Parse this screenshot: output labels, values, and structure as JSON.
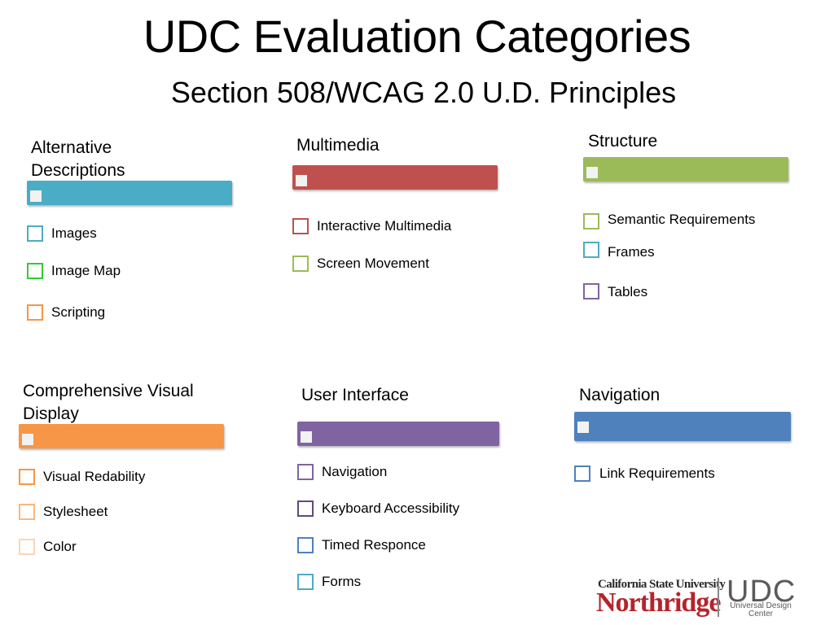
{
  "title": "UDC Evaluation Categories",
  "subtitle": "Section 508/WCAG 2.0 U.D. Principles",
  "groups": [
    {
      "label": "Alternative Descriptions",
      "bar_color": "#4bacc6",
      "items": [
        {
          "label": "Images",
          "color": "#4bacc6"
        },
        {
          "label": "Image Map",
          "color": "#33cc33"
        },
        {
          "label": "Scripting",
          "color": "#f79646"
        }
      ]
    },
    {
      "label": "Multimedia",
      "bar_color": "#c0504d",
      "items": [
        {
          "label": "Interactive Multimedia",
          "color": "#c0504d"
        },
        {
          "label": "Screen Movement",
          "color": "#9bbb59"
        }
      ]
    },
    {
      "label": "Structure",
      "bar_color": "#9bbb59",
      "items": [
        {
          "label": "Semantic Requirements",
          "color": "#9bbb59"
        },
        {
          "label": "Frames",
          "color": "#4bacc6"
        },
        {
          "label": "Tables",
          "color": "#8064a2"
        }
      ]
    },
    {
      "label": "Comprehensive Visual Display",
      "bar_color": "#f79646",
      "items": [
        {
          "label": "Visual Redability",
          "color": "#f79646"
        },
        {
          "label": "Stylesheet",
          "color": "#fab77f"
        },
        {
          "label": "Color",
          "color": "#fcd5b5"
        }
      ]
    },
    {
      "label": "User Interface",
      "bar_color": "#8064a2",
      "items": [
        {
          "label": "Navigation",
          "color": "#8064a2"
        },
        {
          "label": "Keyboard Accessibility",
          "color": "#604a7b"
        },
        {
          "label": "Timed Responce",
          "color": "#4f81bd"
        },
        {
          "label": "Forms",
          "color": "#4bacc6"
        }
      ]
    },
    {
      "label": "Navigation",
      "bar_color": "#4f81bd",
      "items": [
        {
          "label": "Link Requirements",
          "color": "#4f81bd"
        }
      ]
    }
  ],
  "logo": {
    "university": "California State University",
    "campus": "Northridge",
    "udc": "UDC",
    "udc_sub": "Universal Design Center"
  }
}
